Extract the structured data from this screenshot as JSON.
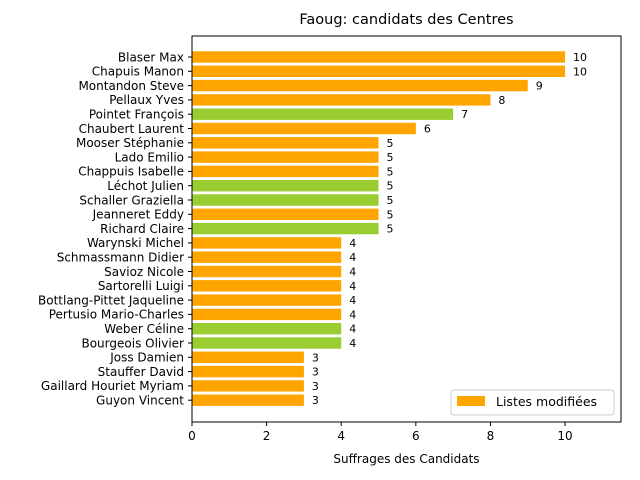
{
  "chart_data": {
    "type": "bar",
    "orientation": "horizontal",
    "title": "Faoug: candidats des Centres",
    "xlabel": "Suffrages des Candidats",
    "ylabel": "",
    "xlim": [
      0,
      11.5
    ],
    "xticks": [
      0,
      2,
      4,
      6,
      8,
      10
    ],
    "legend": {
      "label": "Listes modifiées",
      "color": "#FFA500",
      "placement": "bottom-right"
    },
    "colors": {
      "orange": "#FFA500",
      "green": "#9ACD32"
    },
    "bars": [
      {
        "name": "Blaser Max",
        "value": 10,
        "color": "orange"
      },
      {
        "name": "Chapuis Manon",
        "value": 10,
        "color": "orange"
      },
      {
        "name": "Montandon Steve",
        "value": 9,
        "color": "orange"
      },
      {
        "name": "Pellaux Yves",
        "value": 8,
        "color": "orange"
      },
      {
        "name": "Pointet François",
        "value": 7,
        "color": "green"
      },
      {
        "name": "Chaubert Laurent",
        "value": 6,
        "color": "orange"
      },
      {
        "name": "Mooser Stéphanie",
        "value": 5,
        "color": "orange"
      },
      {
        "name": "Lado Emilio",
        "value": 5,
        "color": "orange"
      },
      {
        "name": "Chappuis Isabelle",
        "value": 5,
        "color": "orange"
      },
      {
        "name": "Léchot Julien",
        "value": 5,
        "color": "green"
      },
      {
        "name": "Schaller Graziella",
        "value": 5,
        "color": "green"
      },
      {
        "name": "Jeanneret Eddy",
        "value": 5,
        "color": "orange"
      },
      {
        "name": "Richard Claire",
        "value": 5,
        "color": "green"
      },
      {
        "name": "Warynski Michel",
        "value": 4,
        "color": "orange"
      },
      {
        "name": "Schmassmann Didier",
        "value": 4,
        "color": "orange"
      },
      {
        "name": "Savioz Nicole",
        "value": 4,
        "color": "orange"
      },
      {
        "name": "Sartorelli Luigi",
        "value": 4,
        "color": "orange"
      },
      {
        "name": "Bottlang-Pittet Jaqueline",
        "value": 4,
        "color": "orange"
      },
      {
        "name": "Pertusio Mario-Charles",
        "value": 4,
        "color": "orange"
      },
      {
        "name": "Weber Céline",
        "value": 4,
        "color": "green"
      },
      {
        "name": "Bourgeois Olivier",
        "value": 4,
        "color": "green"
      },
      {
        "name": "Joss Damien",
        "value": 3,
        "color": "orange"
      },
      {
        "name": "Stauffer David",
        "value": 3,
        "color": "orange"
      },
      {
        "name": "Gaillard Houriet Myriam",
        "value": 3,
        "color": "orange"
      },
      {
        "name": "Guyon Vincent",
        "value": 3,
        "color": "orange"
      }
    ]
  }
}
